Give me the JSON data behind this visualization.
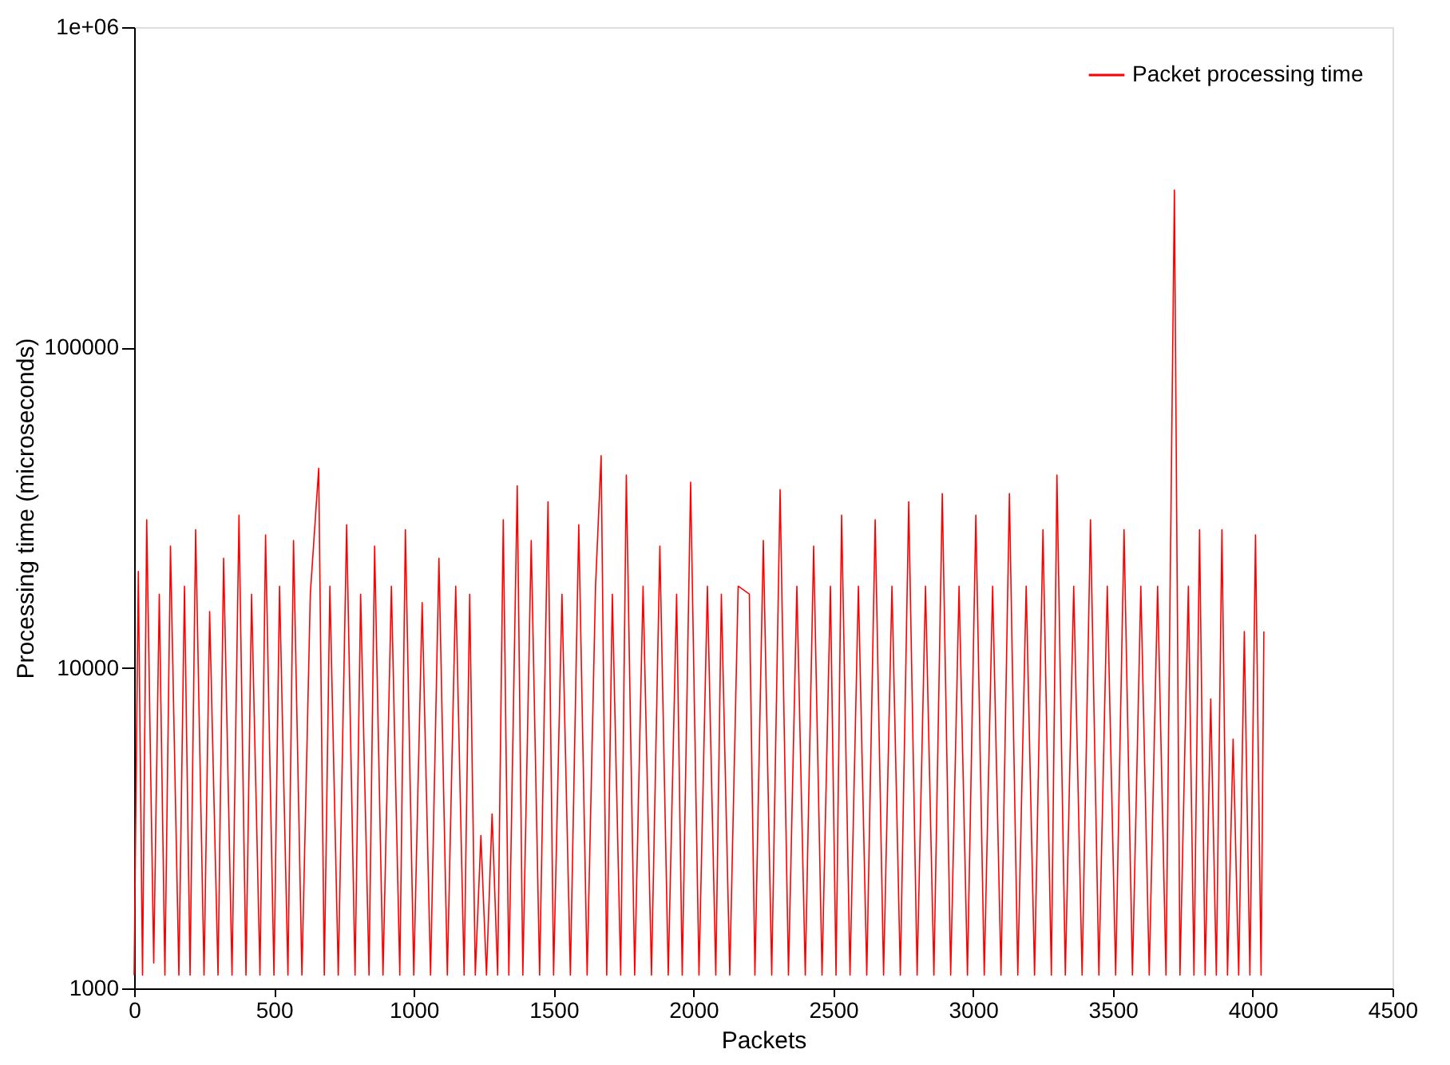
{
  "chart_data": {
    "type": "line",
    "xlabel": "Packets",
    "ylabel": "Processing time (microseconds)",
    "log": "y",
    "xlim": [
      0,
      4500
    ],
    "xticks": [
      0,
      500,
      1000,
      1500,
      2000,
      2500,
      3000,
      3500,
      4000,
      4500
    ],
    "ylim": [
      1000,
      1000000
    ],
    "yticks": [
      1000,
      10000,
      100000,
      {
        "value": 1000000,
        "label": "1e+06"
      }
    ],
    "grid": false,
    "legend": "top right",
    "marker": "none",
    "line_style": "solid",
    "series": [
      {
        "name": "Packet processing time",
        "color": "#ff0000",
        "x": [
          0,
          15,
          30,
          45,
          70,
          90,
          110,
          130,
          160,
          180,
          200,
          220,
          250,
          270,
          300,
          320,
          350,
          375,
          400,
          420,
          450,
          470,
          500,
          520,
          550,
          570,
          600,
          630,
          660,
          680,
          700,
          730,
          760,
          790,
          810,
          840,
          860,
          890,
          920,
          950,
          970,
          1000,
          1030,
          1060,
          1090,
          1120,
          1150,
          1180,
          1200,
          1220,
          1240,
          1260,
          1280,
          1300,
          1320,
          1340,
          1370,
          1390,
          1420,
          1450,
          1480,
          1500,
          1530,
          1560,
          1590,
          1620,
          1650,
          1670,
          1690,
          1710,
          1740,
          1760,
          1790,
          1820,
          1850,
          1880,
          1910,
          1940,
          1960,
          1990,
          2020,
          2050,
          2080,
          2100,
          2130,
          2160,
          2200,
          2220,
          2250,
          2280,
          2310,
          2340,
          2370,
          2400,
          2430,
          2460,
          2490,
          2510,
          2530,
          2560,
          2590,
          2620,
          2650,
          2680,
          2710,
          2740,
          2770,
          2800,
          2830,
          2860,
          2890,
          2920,
          2950,
          2980,
          3010,
          3040,
          3070,
          3100,
          3130,
          3160,
          3190,
          3220,
          3250,
          3280,
          3300,
          3330,
          3360,
          3390,
          3420,
          3450,
          3480,
          3510,
          3540,
          3570,
          3600,
          3630,
          3660,
          3690,
          3720,
          3740,
          3770,
          3790,
          3810,
          3830,
          3850,
          3870,
          3890,
          3910,
          3930,
          3950,
          3970,
          3990,
          4010,
          4030,
          4040
        ],
        "values": [
          1100,
          20000,
          1100,
          29000,
          1200,
          17000,
          1100,
          24000,
          1100,
          18000,
          1100,
          27000,
          1100,
          15000,
          1100,
          22000,
          1100,
          30000,
          1100,
          17000,
          1100,
          26000,
          1100,
          18000,
          1100,
          25000,
          1100,
          17000,
          42000,
          1100,
          18000,
          1100,
          28000,
          1100,
          17000,
          1100,
          24000,
          1100,
          18000,
          1100,
          27000,
          1100,
          16000,
          1100,
          22000,
          1100,
          18000,
          1100,
          17000,
          1100,
          3000,
          1100,
          3500,
          1100,
          29000,
          1100,
          37000,
          1100,
          25000,
          1100,
          33000,
          1100,
          17000,
          1100,
          28000,
          1100,
          18000,
          46000,
          1100,
          17000,
          1100,
          40000,
          1100,
          18000,
          1100,
          24000,
          1100,
          17000,
          1100,
          38000,
          1100,
          18000,
          1100,
          17000,
          1100,
          18000,
          17000,
          1100,
          25000,
          1100,
          36000,
          1100,
          18000,
          1100,
          24000,
          1100,
          18000,
          1100,
          30000,
          1100,
          18000,
          1100,
          29000,
          1100,
          18000,
          1100,
          33000,
          1100,
          18000,
          1100,
          35000,
          1100,
          18000,
          1100,
          30000,
          1100,
          18000,
          1100,
          35000,
          1100,
          18000,
          1100,
          27000,
          1100,
          40000,
          1100,
          18000,
          1100,
          29000,
          1100,
          18000,
          1100,
          27000,
          1100,
          18000,
          1100,
          18000,
          1100,
          310000,
          1100,
          18000,
          1100,
          27000,
          1100,
          8000,
          1100,
          27000,
          1100,
          6000,
          1100,
          13000,
          1100,
          26000,
          1100,
          13000
        ]
      }
    ]
  }
}
